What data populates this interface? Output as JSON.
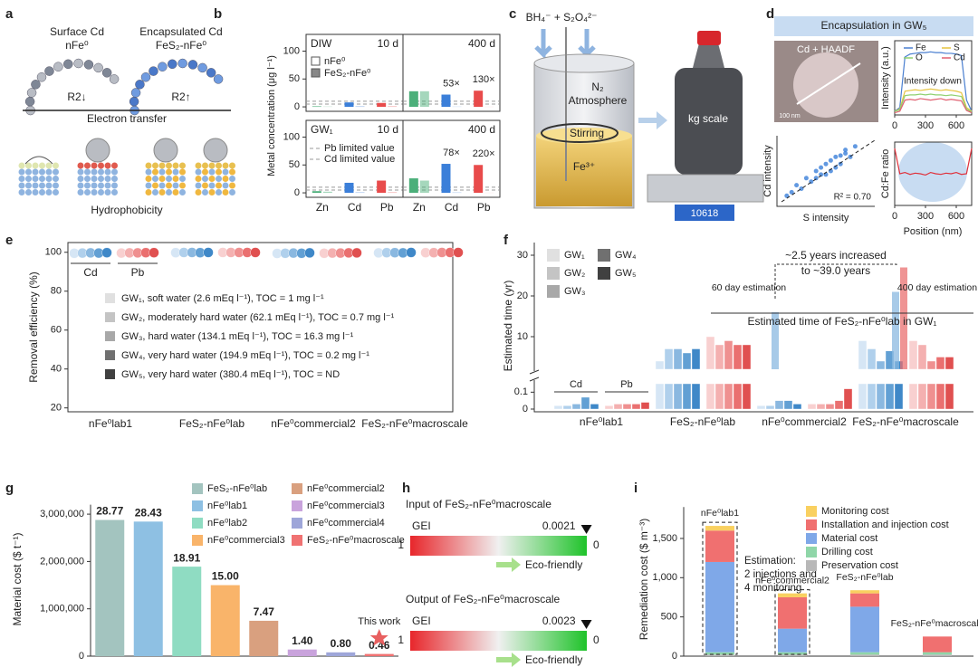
{
  "panels": [
    "a",
    "b",
    "c",
    "d",
    "e",
    "f",
    "g",
    "h",
    "i"
  ],
  "figure_a": {
    "left_title": "Surface Cd",
    "left_material": "nFe⁰",
    "right_title": "Encapsulated Cd",
    "right_material": "FeS₂-nFe⁰",
    "left_r2": "R2↓",
    "right_r2": "R2↑",
    "caption_top": "Electron transfer",
    "caption_bottom": "Hydrophobicity"
  },
  "figure_b": {
    "ylabel": "Metal concentration (μg l⁻¹)",
    "category_colors": [
      "#4caf7a",
      "#3b7fd9",
      "#e84b4b"
    ],
    "limits": [
      {
        "name": "Pb limited value",
        "value": 10
      },
      {
        "name": "Cd limited value",
        "value": 5
      }
    ]
  },
  "figure_c": {
    "reagents": "BH₄⁻ + S₂O₄²⁻",
    "gas": "N₂",
    "gas_note": "Atmosphere",
    "stirring": "Stirring",
    "ion": "Fe³⁺",
    "scale": "kg scale",
    "display": 10618
  },
  "figure_d": {
    "title": "Encapsulation in GW₅",
    "image_label": "Cd + HAADF",
    "scale_bar": "100 nm"
  },
  "chart_data": [
    {
      "type": "grouped_bar",
      "label": "DIW",
      "time": "10 d",
      "ylim": [
        -8,
        130
      ],
      "yticks": [
        0,
        50,
        100
      ],
      "series": [
        {
          "name": "nFe⁰",
          "values": [
            1,
            8,
            7
          ]
        },
        {
          "name": "FeS₂-nFe⁰",
          "values": [
            0.5,
            1,
            1
          ]
        }
      ]
    },
    {
      "type": "grouped_bar",
      "time": "400 d",
      "ylim": [
        -8,
        130
      ],
      "series": [
        {
          "values": [
            28,
            22,
            29
          ]
        },
        {
          "values": [
            28,
            0.4,
            0.2
          ]
        }
      ],
      "annotations": [
        "53×",
        "130×"
      ]
    },
    {
      "type": "grouped_bar",
      "label": "GW₁",
      "time": "10 d",
      "ylim": [
        -8,
        130
      ],
      "yticks": [
        0,
        50,
        100
      ],
      "categories": [
        "Zn",
        "Cd",
        "Pb"
      ],
      "series": [
        {
          "values": [
            3,
            18,
            22
          ]
        },
        {
          "values": [
            2,
            1,
            1
          ]
        }
      ]
    },
    {
      "type": "grouped_bar",
      "time": "400 d",
      "ylim": [
        -8,
        130
      ],
      "categories": [
        "Zn",
        "Cd",
        "Pb"
      ],
      "series": [
        {
          "values": [
            26,
            52,
            50
          ]
        },
        {
          "values": [
            22,
            0.7,
            0.2
          ]
        }
      ],
      "annotations": [
        "78×",
        "220×"
      ]
    },
    {
      "type": "line",
      "ylabel": "Intensity (a.u.)",
      "annotation": "Intensity down",
      "xlim": [
        0,
        750
      ],
      "xticks": [
        0,
        300,
        600
      ],
      "ylim": [
        0,
        1
      ],
      "x": [
        0,
        50,
        100,
        150,
        200,
        250,
        300,
        350,
        400,
        450,
        500,
        550,
        600,
        650,
        700,
        750
      ],
      "series": [
        {
          "name": "Fe",
          "color": "#4a7fd0",
          "values": [
            0.05,
            0.1,
            0.78,
            0.82,
            0.83,
            0.84,
            0.84,
            0.85,
            0.84,
            0.84,
            0.83,
            0.83,
            0.82,
            0.8,
            0.2,
            0.05
          ]
        },
        {
          "name": "S",
          "color": "#e6c440",
          "values": [
            0.05,
            0.08,
            0.32,
            0.33,
            0.34,
            0.33,
            0.34,
            0.35,
            0.34,
            0.33,
            0.34,
            0.33,
            0.32,
            0.3,
            0.1,
            0.05
          ]
        },
        {
          "name": "O",
          "color": "#8fd070",
          "values": [
            0.05,
            0.07,
            0.26,
            0.27,
            0.27,
            0.28,
            0.27,
            0.28,
            0.27,
            0.27,
            0.26,
            0.27,
            0.26,
            0.25,
            0.08,
            0.04
          ]
        },
        {
          "name": "Cd",
          "color": "#e06070",
          "values": [
            0.03,
            0.05,
            0.2,
            0.21,
            0.2,
            0.22,
            0.21,
            0.2,
            0.21,
            0.22,
            0.2,
            0.21,
            0.2,
            0.19,
            0.06,
            0.03
          ]
        }
      ]
    },
    {
      "type": "scatter",
      "xlabel": "S intensity",
      "ylabel": "Cd intensity",
      "annotation": "R² = 0.70",
      "xlim": [
        0,
        1
      ],
      "ylim": [
        0,
        1
      ],
      "color": "#3b7fd9",
      "x": [
        0.1,
        0.15,
        0.2,
        0.25,
        0.3,
        0.35,
        0.4,
        0.45,
        0.5,
        0.55,
        0.6,
        0.65,
        0.7,
        0.75,
        0.8,
        0.5,
        0.6,
        0.4,
        0.7,
        0.55,
        0.45,
        0.65
      ],
      "values": [
        0.15,
        0.2,
        0.3,
        0.25,
        0.4,
        0.35,
        0.5,
        0.45,
        0.6,
        0.5,
        0.7,
        0.6,
        0.75,
        0.7,
        0.85,
        0.45,
        0.55,
        0.4,
        0.8,
        0.65,
        0.55,
        0.72
      ]
    },
    {
      "type": "line",
      "ylabel": "Cd:Fe ratio",
      "xlabel": "Position (nm)",
      "xlim": [
        0,
        750
      ],
      "xticks": [
        0,
        300,
        600
      ],
      "ylim": [
        0,
        1
      ],
      "x": [
        0,
        50,
        100,
        150,
        200,
        250,
        300,
        350,
        400,
        450,
        500,
        550,
        600,
        650,
        700,
        750
      ],
      "series": [
        {
          "color": "#e0303a",
          "values": [
            0.9,
            0.5,
            0.52,
            0.49,
            0.51,
            0.5,
            0.48,
            0.52,
            0.5,
            0.49,
            0.51,
            0.5,
            0.52,
            0.49,
            0.5,
            0.9
          ]
        }
      ]
    },
    {
      "type": "dot_strip",
      "ylabel": "Removal efficiency (%)",
      "ylim": [
        18,
        105
      ],
      "yticks": [
        20,
        40,
        60,
        80,
        100
      ],
      "categories": [
        "nFe⁰lab1",
        "FeS₂-nFe⁰lab",
        "nFe⁰commercial2",
        "FeS₂-nFe⁰macroscale"
      ],
      "series": [
        {
          "name": "Cd",
          "colors": [
            "#d6e6f5",
            "#b0d0ec",
            "#8ab8e0",
            "#62a0d4",
            "#3f88c8"
          ],
          "values": [
            [
              99.5,
              99.6,
              99.7,
              99.6,
              99.8
            ],
            [
              99.8,
              99.9,
              99.9,
              99.8,
              99.9
            ],
            [
              99.4,
              99.5,
              99.6,
              99.5,
              99.7
            ],
            [
              99.7,
              99.8,
              99.8,
              99.7,
              99.9
            ]
          ]
        },
        {
          "name": "Pb",
          "colors": [
            "#f8d0d0",
            "#f4b0b0",
            "#ef9090",
            "#ea7070",
            "#e05050"
          ],
          "values": [
            [
              99.6,
              99.7,
              99.7,
              99.8,
              99.8
            ],
            [
              99.9,
              99.9,
              99.9,
              99.9,
              99.9
            ],
            [
              99.5,
              99.6,
              99.6,
              99.7,
              99.7
            ],
            [
              99.8,
              99.8,
              99.9,
              99.9,
              99.9
            ]
          ]
        }
      ],
      "gw_legend": {
        "colors": [
          "#e0e0e0",
          "#c4c4c4",
          "#a8a8a8",
          "#707070",
          "#404040"
        ],
        "labels": [
          "GW₁, soft water (2.6 mEq l⁻¹), TOC = 1 mg l⁻¹",
          "GW₂, moderately hard water (62.1 mEq l⁻¹), TOC = 0.7 mg l⁻¹",
          "GW₃, hard water (134.1 mEq l⁻¹), TOC = 16.3 mg l⁻¹",
          "GW₄, very hard water (194.9 mEq l⁻¹), TOC = 0.2 mg l⁻¹",
          "GW₅, very hard water (380.4 mEq l⁻¹), TOC = ND"
        ]
      }
    },
    {
      "type": "broken_bar",
      "ylabel": "Estimated time (yr)",
      "ylim": [
        0,
        0.15
      ],
      "ylim_upper": [
        2,
        30
      ],
      "yticks": [
        0,
        0.1,
        10,
        20,
        30
      ],
      "categories": [
        "nFe⁰lab1",
        "FeS₂-nFe⁰lab",
        "nFe⁰commercial2",
        "FeS₂-nFe⁰macroscale"
      ],
      "series": [
        {
          "name": "Cd",
          "colors": [
            "#d6e6f5",
            "#b0d0ec",
            "#8ab8e0",
            "#62a0d4",
            "#3f88c8"
          ],
          "values": [
            [
              0.02,
              0.02,
              0.03,
              0.07,
              0.03
            ],
            [
              4,
              7,
              7,
              6,
              7
            ],
            [
              0.02,
              0.02,
              0.05,
              0.05,
              0.03
            ],
            [
              9,
              7,
              4,
              6.5,
              4
            ]
          ]
        },
        {
          "name": "Pb",
          "colors": [
            "#f8d0d0",
            "#f4b0b0",
            "#ef9090",
            "#ea7070",
            "#e05050"
          ],
          "values": [
            [
              0.02,
              0.03,
              0.03,
              0.03,
              0.04
            ],
            [
              10,
              8,
              9,
              8,
              8
            ],
            [
              0.03,
              0.03,
              0.03,
              0.05,
              0.12
            ],
            [
              9,
              8,
              4,
              5,
              5
            ]
          ]
        }
      ],
      "legend": {
        "labels": [
          "GW₁",
          "GW₂",
          "GW₃",
          "GW₄",
          "GW₅"
        ],
        "colors": [
          "#e0e0e0",
          "#c4c4c4",
          "#a8a8a8",
          "#707070",
          "#404040"
        ]
      },
      "estimates": [
        {
          "label": "60 day estimation",
          "values": [
            16
          ]
        },
        {
          "label": "400 day estimation",
          "values": [
            21,
            27
          ]
        }
      ],
      "annotations": [
        "~2.5 years increased",
        "to ~39.0 years",
        "Estimated time of FeS₂-nFe⁰lab in GW₁"
      ]
    },
    {
      "type": "bar",
      "ylabel": "Material cost ($ t⁻¹)",
      "ylim": [
        0,
        3200000
      ],
      "yticks": [
        0,
        {
          "value": 1000000,
          "label": "1,000,000"
        },
        {
          "value": 2000000,
          "label": "2,000,000"
        },
        {
          "value": 3000000,
          "label": "3,000,000"
        }
      ],
      "categories": [
        "FeS₂-nFe⁰lab",
        "nFe⁰lab1",
        "nFe⁰lab2",
        "nFe⁰commercial3",
        "nFe⁰commercial2",
        "nFe⁰commercial3",
        "nFe⁰commercial4",
        "FeS₂-nFe⁰macroscale"
      ],
      "values": [
        2877000,
        2843000,
        1891000,
        1500000,
        747000,
        140000,
        80000,
        46000
      ],
      "value_labels": [
        "28.77",
        "28.43",
        "18.91",
        "15.00",
        "7.47",
        "1.40",
        "0.80",
        "0.46"
      ],
      "colors": [
        "#a3c4bf",
        "#8ec0e3",
        "#8fdcc2",
        "#f9b46a",
        "#d9a07f",
        "#c9a3dc",
        "#9ea6d9",
        "#f07272"
      ],
      "annotation": "This work"
    },
    {
      "type": "gradient_scale",
      "title": "Input of FeS₂-nFe⁰macroscale",
      "label": "GEI",
      "value": 0.0021,
      "xlim": [
        1,
        0
      ],
      "xticks": [
        1,
        0
      ],
      "note": "Eco-friendly"
    },
    {
      "type": "gradient_scale",
      "title": "Output of FeS₂-nFe⁰macroscale",
      "label": "GEI",
      "value": 0.0023,
      "xlim": [
        1,
        0
      ],
      "xticks": [
        1,
        0
      ],
      "note": "Eco-friendly"
    },
    {
      "type": "stacked_bar",
      "ylabel": "Remediation cost ($ m⁻³)",
      "ylim": [
        0,
        1900
      ],
      "yticks": [
        0,
        500,
        {
          "value": 1000,
          "label": "1,000"
        },
        {
          "value": 1500,
          "label": "1,500"
        }
      ],
      "categories": [
        "nFe⁰lab1",
        "nFe⁰commercial2",
        "FeS₂-nFe⁰lab",
        "FeS₂-nFe⁰macroscale"
      ],
      "series": [
        {
          "name": "Preservation cost",
          "color": "#b8b8b8",
          "values": [
            20,
            20,
            20,
            20
          ]
        },
        {
          "name": "Drilling cost",
          "color": "#8fd6a8",
          "values": [
            30,
            30,
            30,
            30
          ]
        },
        {
          "name": "Material cost",
          "color": "#7fa8e8",
          "values": [
            1150,
            300,
            580,
            0
          ]
        },
        {
          "name": "Installation and injection cost",
          "color": "#f07070",
          "values": [
            400,
            400,
            170,
            200
          ]
        },
        {
          "name": "Monitoring cost",
          "color": "#f9d060",
          "values": [
            60,
            50,
            40,
            0
          ]
        }
      ],
      "annotation": [
        "Estimation:",
        "2 injections and",
        "4 monitoring"
      ]
    }
  ]
}
